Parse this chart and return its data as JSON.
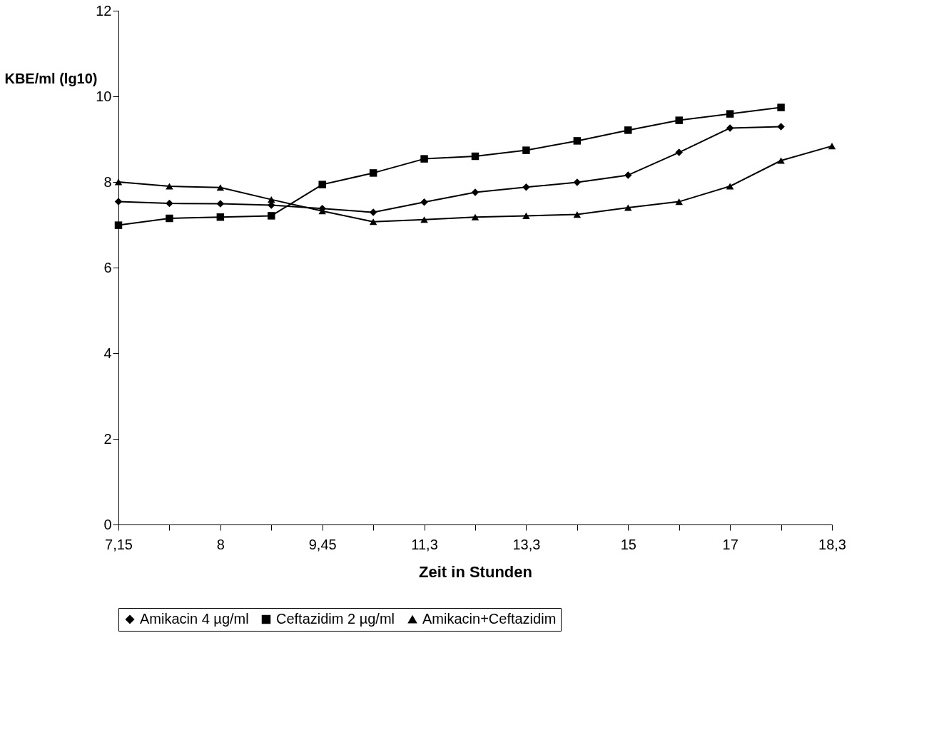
{
  "chart_data": {
    "type": "line",
    "xlabel": "Zeit in Stunden",
    "ylabel": "KBE/ml (lg10)",
    "categories": [
      "7,15",
      null,
      "8",
      null,
      "9,45",
      null,
      "11,3",
      null,
      "13,3",
      null,
      "15",
      null,
      "17",
      null,
      "18,3"
    ],
    "series": [
      {
        "name": "Amikacin 4 µg/ml",
        "color": "#000000",
        "marker": "diamond",
        "values": [
          7.54,
          7.5,
          7.49,
          7.46,
          7.38,
          7.29,
          7.53,
          7.76,
          7.88,
          7.99,
          8.16,
          8.69,
          9.26,
          9.29,
          null
        ]
      },
      {
        "name": "Ceftazidim 2 µg/ml",
        "color": "#000000",
        "marker": "square",
        "values": [
          6.99,
          7.15,
          7.18,
          7.21,
          7.94,
          8.21,
          8.54,
          8.6,
          8.74,
          8.96,
          9.21,
          9.44,
          9.59,
          9.74,
          null
        ]
      },
      {
        "name": "Amikacin+Ceftazidim",
        "color": "#000000",
        "marker": "triangle",
        "values": [
          8.0,
          7.9,
          7.87,
          7.59,
          7.32,
          7.07,
          7.12,
          7.18,
          7.21,
          7.24,
          7.4,
          7.54,
          7.9,
          8.5,
          8.84
        ]
      }
    ],
    "ylim": [
      0,
      12
    ],
    "yticks": [
      0,
      2,
      4,
      6,
      8,
      10,
      12
    ],
    "grid": false,
    "legend": "bottom"
  }
}
